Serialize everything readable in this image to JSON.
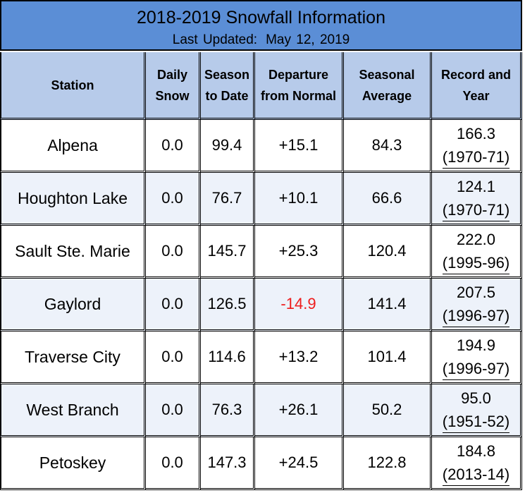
{
  "header": {
    "title": "2018-2019 Snowfall Information",
    "updated_label": "Last Updated:",
    "updated_date": "May 12, 2019"
  },
  "columns": [
    [
      "Station"
    ],
    [
      "Daily",
      "Snow"
    ],
    [
      "Season",
      "to Date"
    ],
    [
      "Departure",
      "from Normal"
    ],
    [
      "Seasonal",
      "Average"
    ],
    [
      "Record and",
      "Year"
    ]
  ],
  "rows": [
    {
      "station": "Alpena",
      "daily": "0.0",
      "season": "99.4",
      "departure": "+15.1",
      "average": "84.3",
      "record": "166.3",
      "year": "(1970-71)",
      "negative": false
    },
    {
      "station": "Houghton Lake",
      "daily": "0.0",
      "season": "76.7",
      "departure": "+10.1",
      "average": "66.6",
      "record": "124.1",
      "year": "(1970-71)",
      "negative": false
    },
    {
      "station": "Sault Ste. Marie",
      "daily": "0.0",
      "season": "145.7",
      "departure": "+25.3",
      "average": "120.4",
      "record": "222.0",
      "year": "(1995-96)",
      "negative": false
    },
    {
      "station": "Gaylord",
      "daily": "0.0",
      "season": "126.5",
      "departure": "-14.9",
      "average": "141.4",
      "record": "207.5",
      "year": "(1996-97)",
      "negative": true
    },
    {
      "station": "Traverse City",
      "daily": "0.0",
      "season": "114.6",
      "departure": "+13.2",
      "average": "101.4",
      "record": "194.9",
      "year": "(1996-97)",
      "negative": false
    },
    {
      "station": "West Branch",
      "daily": "0.0",
      "season": "76.3",
      "departure": "+26.1",
      "average": "50.2",
      "record": "95.0",
      "year": "(1951-52)",
      "negative": false
    },
    {
      "station": "Petoskey",
      "daily": "0.0",
      "season": "147.3",
      "departure": "+24.5",
      "average": "122.8",
      "record": "184.8",
      "year": "(2013-14)",
      "negative": false
    }
  ],
  "colors": {
    "title_background": "#5b8ed6",
    "header_background": "#b7cbea",
    "row_stripe": "#edf2fa",
    "negative_text": "#ee1c1c"
  }
}
